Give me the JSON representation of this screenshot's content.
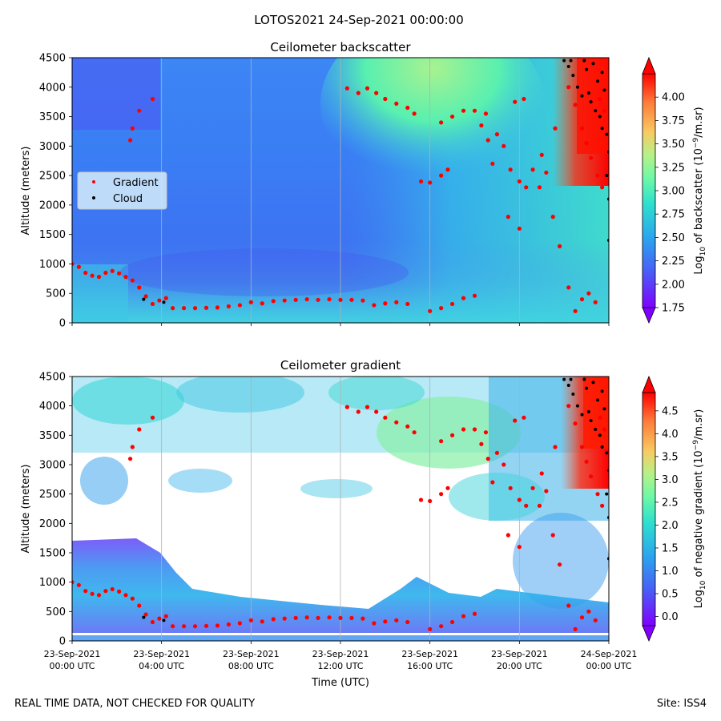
{
  "figure": {
    "suptitle": "LOTOS2021 24-Sep-2021 00:00:00",
    "footer_left": "REAL TIME DATA, NOT CHECKED FOR QUALITY",
    "footer_right": "Site: ISS4"
  },
  "colors": {
    "gradient_marker": "#ff0000",
    "cloud_marker": "#000000",
    "grid": "#b0b0b0",
    "legend_bg": "#d6ecfa"
  },
  "chart_data": [
    {
      "type": "heatmap",
      "id": "backscatter",
      "title": "Ceilometer backscatter",
      "xlabel": "",
      "ylabel": "Altitude (meters)",
      "xlim_hours": [
        0,
        24
      ],
      "ylim": [
        0,
        4500
      ],
      "yticks": [
        0,
        500,
        1000,
        1500,
        2000,
        2500,
        3000,
        3500,
        4000,
        4500
      ],
      "xtick_hours": [
        0,
        4,
        8,
        12,
        16,
        20,
        24
      ],
      "colorbar": {
        "label": "Log10 of backscatter (10^-9/m.sr)",
        "label_base": "Log",
        "label_sub": "10",
        "label_mid": " of backscatter (10",
        "label_sup": "−9",
        "label_end": "/m.sr)",
        "range": [
          1.75,
          4.25
        ],
        "ticks": [
          "1.75",
          "2.00",
          "2.25",
          "2.50",
          "2.75",
          "3.00",
          "3.25",
          "3.50",
          "3.75",
          "4.00"
        ]
      },
      "legend": {
        "position": "center-left",
        "entries": [
          {
            "label": "Gradient",
            "color": "#ff0000"
          },
          {
            "label": "Cloud",
            "color": "#000000"
          }
        ]
      },
      "series": [
        {
          "name": "Gradient",
          "color": "#ff0000",
          "points": [
            [
              0.0,
              1000
            ],
            [
              0.3,
              950
            ],
            [
              0.6,
              850
            ],
            [
              0.9,
              800
            ],
            [
              1.2,
              780
            ],
            [
              1.5,
              850
            ],
            [
              1.8,
              880
            ],
            [
              2.1,
              840
            ],
            [
              2.4,
              780
            ],
            [
              2.7,
              720
            ],
            [
              3.0,
              600
            ],
            [
              3.3,
              450
            ],
            [
              3.6,
              320
            ],
            [
              3.9,
              380
            ],
            [
              4.2,
              420
            ],
            [
              4.5,
              250
            ],
            [
              5.0,
              250
            ],
            [
              5.5,
              250
            ],
            [
              6.0,
              255
            ],
            [
              6.5,
              260
            ],
            [
              7.0,
              280
            ],
            [
              7.5,
              300
            ],
            [
              8.0,
              350
            ],
            [
              8.5,
              330
            ],
            [
              9.0,
              370
            ],
            [
              9.5,
              380
            ],
            [
              10.0,
              390
            ],
            [
              10.5,
              400
            ],
            [
              11.0,
              390
            ],
            [
              11.5,
              400
            ],
            [
              12.0,
              390
            ],
            [
              12.5,
              390
            ],
            [
              13.0,
              380
            ],
            [
              13.5,
              300
            ],
            [
              14.0,
              330
            ],
            [
              14.5,
              350
            ],
            [
              15.0,
              320
            ],
            [
              16.0,
              200
            ],
            [
              16.5,
              250
            ],
            [
              17.0,
              320
            ],
            [
              17.5,
              420
            ],
            [
              18.0,
              460
            ],
            [
              12.3,
              3980
            ],
            [
              12.8,
              3900
            ],
            [
              13.2,
              3980
            ],
            [
              13.6,
              3900
            ],
            [
              14.0,
              3800
            ],
            [
              14.5,
              3720
            ],
            [
              15.0,
              3650
            ],
            [
              15.3,
              3550
            ],
            [
              15.6,
              2400
            ],
            [
              16.0,
              2380
            ],
            [
              16.5,
              2500
            ],
            [
              16.8,
              2600
            ],
            [
              16.5,
              3400
            ],
            [
              17.0,
              3500
            ],
            [
              17.5,
              3600
            ],
            [
              18.0,
              3600
            ],
            [
              18.3,
              3350
            ],
            [
              18.6,
              3100
            ],
            [
              18.8,
              2700
            ],
            [
              19.0,
              3200
            ],
            [
              19.3,
              3000
            ],
            [
              19.6,
              2600
            ],
            [
              20.0,
              2400
            ],
            [
              20.3,
              2300
            ],
            [
              20.6,
              2600
            ],
            [
              20.9,
              2300
            ],
            [
              21.2,
              2550
            ],
            [
              21.5,
              1800
            ],
            [
              21.8,
              1300
            ],
            [
              22.2,
              600
            ],
            [
              22.5,
              200
            ],
            [
              22.8,
              400
            ],
            [
              23.1,
              500
            ],
            [
              23.4,
              350
            ],
            [
              23.6,
              3800
            ],
            [
              23.8,
              3600
            ],
            [
              22.2,
              4000
            ],
            [
              22.5,
              3700
            ],
            [
              22.8,
              3300
            ],
            [
              23.0,
              3050
            ],
            [
              23.2,
              2800
            ],
            [
              23.5,
              2500
            ],
            [
              23.7,
              2300
            ],
            [
              2.7,
              3300
            ],
            [
              2.6,
              3100
            ],
            [
              3.0,
              3600
            ],
            [
              3.6,
              3800
            ],
            [
              20.0,
              1600
            ],
            [
              19.5,
              1800
            ],
            [
              18.5,
              3550
            ],
            [
              19.8,
              3750
            ],
            [
              20.2,
              3800
            ],
            [
              21.0,
              2850
            ],
            [
              21.6,
              3300
            ]
          ]
        },
        {
          "name": "Cloud",
          "color": "#000000",
          "points": [
            [
              3.2,
              400
            ],
            [
              4.1,
              350
            ],
            [
              22.0,
              4450
            ],
            [
              22.2,
              4350
            ],
            [
              22.4,
              4200
            ],
            [
              22.6,
              4000
            ],
            [
              22.8,
              3850
            ],
            [
              23.0,
              4300
            ],
            [
              23.1,
              3900
            ],
            [
              23.2,
              3750
            ],
            [
              23.4,
              3600
            ],
            [
              23.5,
              4100
            ],
            [
              23.6,
              3500
            ],
            [
              23.7,
              3300
            ],
            [
              23.8,
              3950
            ],
            [
              23.9,
              3200
            ],
            [
              24.0,
              2900
            ],
            [
              23.9,
              2500
            ],
            [
              24.0,
              2100
            ],
            [
              24.0,
              1400
            ],
            [
              22.3,
              4450
            ],
            [
              22.9,
              4450
            ],
            [
              23.3,
              4400
            ],
            [
              23.7,
              4250
            ]
          ]
        }
      ]
    },
    {
      "type": "heatmap",
      "id": "gradient",
      "title": "Ceilometer gradient",
      "xlabel": "Time (UTC)",
      "ylabel": "Altitude (meters)",
      "xlim_hours": [
        0,
        24
      ],
      "ylim": [
        0,
        4500
      ],
      "yticks": [
        0,
        500,
        1000,
        1500,
        2000,
        2500,
        3000,
        3500,
        4000,
        4500
      ],
      "xtick_hours": [
        0,
        4,
        8,
        12,
        16,
        20,
        24
      ],
      "xtick_labels": [
        [
          "23-Sep-2021",
          "00:00 UTC"
        ],
        [
          "23-Sep-2021",
          "04:00 UTC"
        ],
        [
          "23-Sep-2021",
          "08:00 UTC"
        ],
        [
          "23-Sep-2021",
          "12:00 UTC"
        ],
        [
          "23-Sep-2021",
          "16:00 UTC"
        ],
        [
          "23-Sep-2021",
          "20:00 UTC"
        ],
        [
          "24-Sep-2021",
          "00:00 UTC"
        ]
      ],
      "colorbar": {
        "label": "Log10 of negative gradient (10^-9/m.sr)",
        "label_base": "Log",
        "label_sub": "10",
        "label_mid": " of negative gradient (10",
        "label_sup": "−9",
        "label_end": "/m.sr)",
        "range": [
          -0.2,
          4.9
        ],
        "ticks": [
          "0.0",
          "0.5",
          "1.0",
          "1.5",
          "2.0",
          "2.5",
          "3.0",
          "3.5",
          "4.0",
          "4.5"
        ]
      },
      "series_ref": "same as backscatter panel overlay (Gradient in red, Cloud in black)"
    }
  ]
}
